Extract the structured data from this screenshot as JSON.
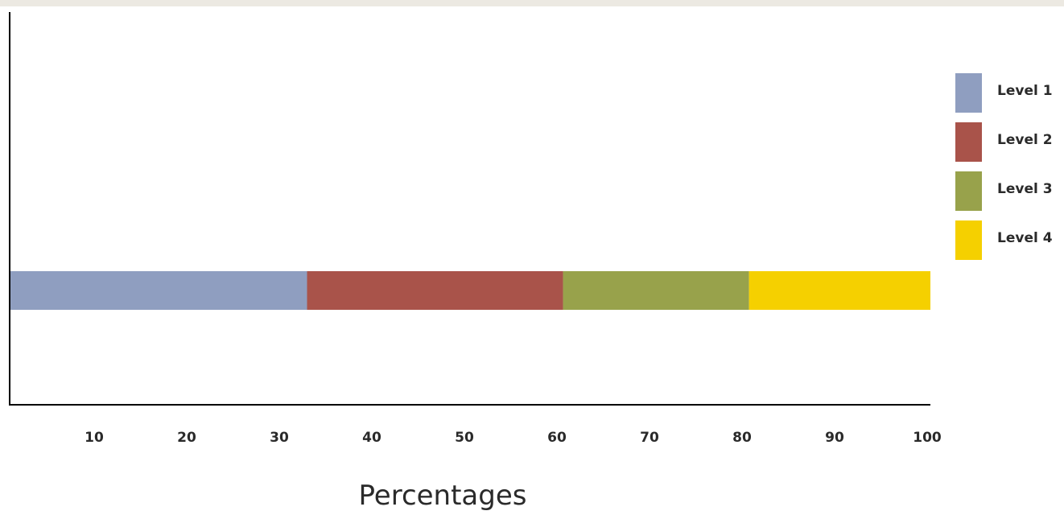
{
  "chart_data": {
    "type": "bar",
    "orientation": "horizontal",
    "stacked": true,
    "xlabel": "Percentages",
    "ylabel": "",
    "xlim": [
      0,
      100
    ],
    "ticks": [
      "10",
      "20",
      "30",
      "40",
      "50",
      "60",
      "70",
      "80",
      "90",
      "100"
    ],
    "tick_values": [
      10,
      20,
      30,
      40,
      50,
      60,
      70,
      80,
      90,
      100
    ],
    "grid": false,
    "legend_position": "right",
    "series": [
      {
        "name": "Level 1",
        "value": 32.3,
        "color": "#8f9ec0"
      },
      {
        "name": "Level 2",
        "value": 27.8,
        "color": "#a9534a"
      },
      {
        "name": "Level 3",
        "value": 20.2,
        "color": "#98a24b"
      },
      {
        "name": "Level 4",
        "value": 19.7,
        "color": "#f5d000"
      }
    ]
  }
}
